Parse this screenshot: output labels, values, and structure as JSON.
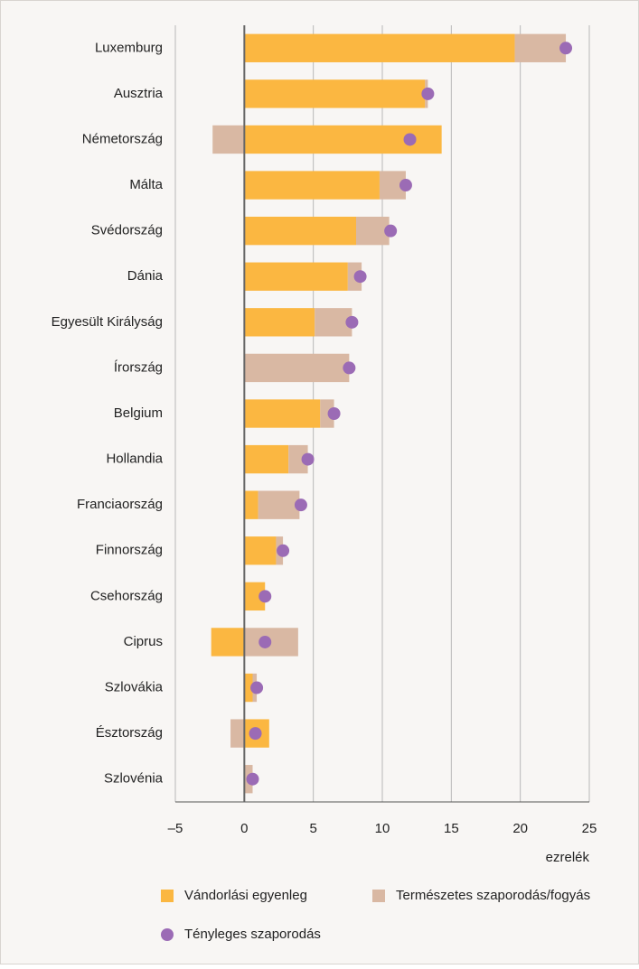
{
  "chart_data": {
    "type": "bar",
    "orientation": "horizontal",
    "stacked": true,
    "categories": [
      "Luxemburg",
      "Ausztria",
      "Németország",
      "Málta",
      "Svédország",
      "Dánia",
      "Egyesült Királyság",
      "Írország",
      "Belgium",
      "Hollandia",
      "Franciaország",
      "Finnország",
      "Csehország",
      "Ciprus",
      "Szlovákia",
      "Észtország",
      "Szlovénia"
    ],
    "series": [
      {
        "name": "Vándorlási egyenleg",
        "color": "#fbb741",
        "kind": "bar",
        "values": [
          19.6,
          13.1,
          14.3,
          9.8,
          8.1,
          7.5,
          5.1,
          0,
          5.5,
          3.2,
          1.0,
          2.3,
          1.5,
          -2.4,
          0.6,
          1.8,
          0
        ]
      },
      {
        "name": "Természetes szaporodás/fogyás",
        "color": "#d9b8a3",
        "kind": "bar",
        "values": [
          3.7,
          0.2,
          -2.3,
          1.9,
          2.4,
          1.0,
          2.7,
          7.6,
          1.0,
          1.4,
          3.0,
          0.5,
          0,
          3.9,
          0.3,
          -1.0,
          0.6
        ]
      },
      {
        "name": "Tényleges szaporodás",
        "color": "#9b6bb5",
        "kind": "dot",
        "values": [
          23.3,
          13.3,
          12.0,
          11.7,
          10.6,
          8.4,
          7.8,
          7.6,
          6.5,
          4.6,
          4.1,
          2.8,
          1.5,
          1.5,
          0.9,
          0.8,
          0.6
        ]
      }
    ],
    "xlim": [
      -5,
      25
    ],
    "xticks": [
      {
        "value": -5,
        "label": "–5"
      },
      0,
      5,
      10,
      15,
      20,
      25
    ],
    "xlabel": "ezrelék",
    "grid": true
  }
}
